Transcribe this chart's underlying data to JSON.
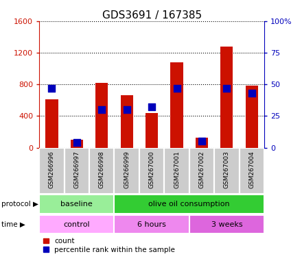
{
  "title": "GDS3691 / 167385",
  "samples": [
    "GSM266996",
    "GSM266997",
    "GSM266998",
    "GSM266999",
    "GSM267000",
    "GSM267001",
    "GSM267002",
    "GSM267003",
    "GSM267004"
  ],
  "count_values": [
    610,
    100,
    820,
    660,
    440,
    1080,
    130,
    1280,
    780
  ],
  "percentile_values": [
    47,
    4,
    30,
    30,
    32,
    47,
    5,
    47,
    43
  ],
  "ylim_left": [
    0,
    1600
  ],
  "ylim_right": [
    0,
    100
  ],
  "yticks_left": [
    0,
    400,
    800,
    1200,
    1600
  ],
  "yticks_right": [
    0,
    25,
    50,
    75,
    100
  ],
  "ytick_labels_right": [
    "0",
    "25",
    "50",
    "75",
    "100%"
  ],
  "bar_color_red": "#cc1100",
  "bar_color_blue": "#0000bb",
  "protocol_groups": [
    {
      "label": "baseline",
      "start": 0,
      "end": 3,
      "color": "#99ee99"
    },
    {
      "label": "olive oil consumption",
      "start": 3,
      "end": 9,
      "color": "#33cc33"
    }
  ],
  "time_groups": [
    {
      "label": "control",
      "start": 0,
      "end": 3,
      "color": "#ffaaff"
    },
    {
      "label": "6 hours",
      "start": 3,
      "end": 6,
      "color": "#ee88ee"
    },
    {
      "label": "3 weeks",
      "start": 6,
      "end": 9,
      "color": "#dd66dd"
    }
  ],
  "legend_count_label": "count",
  "legend_pct_label": "percentile rank within the sample",
  "bg_color": "#ffffff",
  "tick_bg_color": "#cccccc",
  "protocol_label": "protocol",
  "time_label": "time",
  "bar_width": 0.5,
  "blue_marker_size": 50
}
